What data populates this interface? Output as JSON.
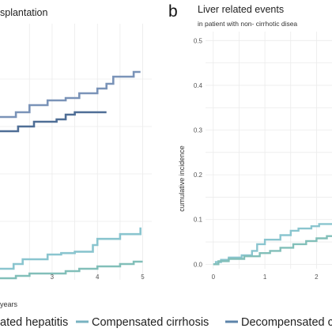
{
  "panel_left": {
    "title": "splantation",
    "xlabel": "years"
  },
  "panel_right": {
    "label": "b",
    "title": "Liver related events",
    "subtitle": "in patient with non- cirrhotic disea",
    "ylabel": "cumulative incidence"
  },
  "legend": {
    "items": [
      {
        "label": "ated hepatitis",
        "color": "#87c2cc"
      },
      {
        "label": "Compensated cirrhosis",
        "color": "#78b3c1"
      },
      {
        "label": "Decompensated c",
        "color": "#5d84aa"
      }
    ]
  },
  "chart_data": [
    {
      "type": "line",
      "title": "splantation",
      "xlabel": "years",
      "ylabel": "",
      "xlim": [
        1.85,
        5.2
      ],
      "ylim": [
        0,
        0.5
      ],
      "x_ticks": [
        3,
        4,
        5
      ],
      "step": true,
      "series": [
        {
          "color": "#7a93b8",
          "points": [
            [
              1.85,
              0.32
            ],
            [
              2.2,
              0.32
            ],
            [
              2.2,
              0.33
            ],
            [
              2.5,
              0.33
            ],
            [
              2.5,
              0.345
            ],
            [
              2.9,
              0.345
            ],
            [
              2.9,
              0.355
            ],
            [
              3.3,
              0.355
            ],
            [
              3.3,
              0.36
            ],
            [
              3.6,
              0.36
            ],
            [
              3.6,
              0.37
            ],
            [
              4.0,
              0.37
            ],
            [
              4.0,
              0.38
            ],
            [
              4.2,
              0.38
            ],
            [
              4.2,
              0.39
            ],
            [
              4.35,
              0.39
            ],
            [
              4.35,
              0.405
            ],
            [
              4.8,
              0.405
            ],
            [
              4.8,
              0.415
            ],
            [
              4.95,
              0.415
            ]
          ]
        },
        {
          "color": "#4f6e96",
          "points": [
            [
              1.85,
              0.29
            ],
            [
              2.25,
              0.29
            ],
            [
              2.25,
              0.3
            ],
            [
              2.6,
              0.3
            ],
            [
              2.6,
              0.31
            ],
            [
              3.1,
              0.31
            ],
            [
              3.1,
              0.315
            ],
            [
              3.3,
              0.315
            ],
            [
              3.3,
              0.325
            ],
            [
              3.5,
              0.325
            ],
            [
              3.5,
              0.33
            ],
            [
              4.2,
              0.33
            ]
          ]
        },
        {
          "color": "#8ac5cf",
          "points": [
            [
              1.85,
              0.0
            ],
            [
              2.15,
              0.0
            ],
            [
              2.15,
              0.01
            ],
            [
              2.35,
              0.01
            ],
            [
              2.35,
              0.02
            ],
            [
              2.9,
              0.02
            ],
            [
              2.9,
              0.03
            ],
            [
              3.2,
              0.03
            ],
            [
              3.2,
              0.033
            ],
            [
              3.5,
              0.033
            ],
            [
              3.5,
              0.036
            ],
            [
              3.9,
              0.036
            ],
            [
              3.9,
              0.05
            ],
            [
              4.0,
              0.05
            ],
            [
              4.0,
              0.063
            ],
            [
              4.5,
              0.063
            ],
            [
              4.5,
              0.073
            ],
            [
              4.95,
              0.073
            ],
            [
              4.95,
              0.087
            ]
          ]
        },
        {
          "color": "#82bfb9",
          "points": [
            [
              1.85,
              -0.02
            ],
            [
              2.2,
              -0.02
            ],
            [
              2.2,
              -0.015
            ],
            [
              2.5,
              -0.015
            ],
            [
              2.5,
              -0.01
            ],
            [
              3.3,
              -0.01
            ],
            [
              3.3,
              -0.005
            ],
            [
              3.6,
              -0.005
            ],
            [
              3.6,
              0.0
            ],
            [
              4.0,
              0.0
            ],
            [
              4.0,
              0.005
            ],
            [
              4.5,
              0.005
            ],
            [
              4.5,
              0.01
            ],
            [
              4.8,
              0.01
            ],
            [
              4.8,
              0.015
            ],
            [
              5.0,
              0.015
            ]
          ]
        }
      ]
    },
    {
      "type": "line",
      "title": "Liver related events",
      "subtitle": "in patient with non- cirrhotic disea",
      "xlabel": "",
      "ylabel": "cumulative incidence",
      "xlim": [
        -0.15,
        2.3
      ],
      "ylim": [
        -0.01,
        0.52
      ],
      "x_ticks": [
        0,
        1,
        2
      ],
      "y_ticks": [
        0.0,
        0.1,
        0.2,
        0.3,
        0.4,
        0.5
      ],
      "y_tick_labels": [
        "0.0",
        "0.1",
        "0.2",
        "0.3",
        "0.4",
        "0.5"
      ],
      "step": true,
      "series": [
        {
          "color": "#8ac5cf",
          "points": [
            [
              0,
              0.0
            ],
            [
              0.05,
              0.0
            ],
            [
              0.05,
              0.005
            ],
            [
              0.15,
              0.005
            ],
            [
              0.15,
              0.01
            ],
            [
              0.3,
              0.01
            ],
            [
              0.3,
              0.015
            ],
            [
              0.55,
              0.015
            ],
            [
              0.55,
              0.02
            ],
            [
              0.75,
              0.02
            ],
            [
              0.75,
              0.03
            ],
            [
              0.85,
              0.03
            ],
            [
              0.85,
              0.045
            ],
            [
              1.0,
              0.045
            ],
            [
              1.0,
              0.055
            ],
            [
              1.3,
              0.055
            ],
            [
              1.3,
              0.065
            ],
            [
              1.5,
              0.065
            ],
            [
              1.5,
              0.075
            ],
            [
              1.65,
              0.075
            ],
            [
              1.65,
              0.08
            ],
            [
              1.9,
              0.08
            ],
            [
              1.9,
              0.085
            ],
            [
              2.05,
              0.085
            ],
            [
              2.05,
              0.09
            ],
            [
              2.3,
              0.09
            ]
          ]
        },
        {
          "color": "#82bfb9",
          "points": [
            [
              0,
              0.0
            ],
            [
              0.1,
              0.0
            ],
            [
              0.1,
              0.007
            ],
            [
              0.3,
              0.007
            ],
            [
              0.3,
              0.012
            ],
            [
              0.6,
              0.012
            ],
            [
              0.6,
              0.018
            ],
            [
              0.9,
              0.018
            ],
            [
              0.9,
              0.025
            ],
            [
              1.1,
              0.025
            ],
            [
              1.1,
              0.03
            ],
            [
              1.3,
              0.03
            ],
            [
              1.3,
              0.037
            ],
            [
              1.55,
              0.037
            ],
            [
              1.55,
              0.045
            ],
            [
              1.8,
              0.045
            ],
            [
              1.8,
              0.052
            ],
            [
              2.0,
              0.052
            ],
            [
              2.0,
              0.058
            ],
            [
              2.2,
              0.058
            ],
            [
              2.2,
              0.063
            ],
            [
              2.3,
              0.063
            ]
          ]
        }
      ]
    }
  ]
}
